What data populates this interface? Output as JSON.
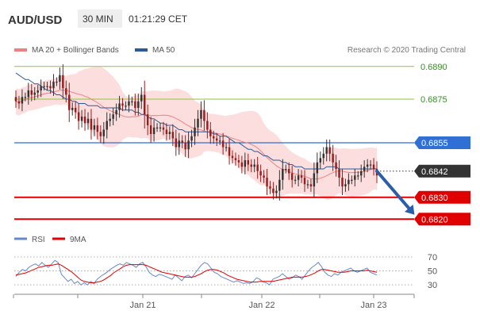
{
  "header": {
    "symbol": "AUD/USD",
    "interval": "30 MIN",
    "time": "01:21:29 CET"
  },
  "legend": {
    "bollinger_label": "MA 20 + Bollinger Bands",
    "ma50_label": "MA 50",
    "rsi_label": "RSI",
    "ma9_label": "9MA",
    "credit": "Research © 2020 Trading Central"
  },
  "colors": {
    "bollinger": "#f08080",
    "band_fill": "#fcd8d8",
    "ma50": "#2c5a96",
    "resistance": "#8cc63f",
    "pivot": "#2f6fd6",
    "support": "#e00000",
    "current": "#333333",
    "candle_up": "#333333",
    "candle_down": "#9b1c1c",
    "rsi": "#6688cc",
    "ma9": "#e00000",
    "arrow": "#2a5daa"
  },
  "chart_data": {
    "type": "candlestick",
    "price_axis": {
      "min": 0.6815,
      "max": 0.6895
    },
    "x_ticks": [
      "Jan 21",
      "Jan 22",
      "Jan 23"
    ],
    "levels": [
      {
        "label": "0.6890",
        "value": 0.689,
        "kind": "resistance"
      },
      {
        "label": "0.6875",
        "value": 0.6875,
        "kind": "resistance"
      },
      {
        "label": "0.6855",
        "value": 0.6855,
        "kind": "pivot"
      },
      {
        "label": "0.6842",
        "value": 0.6842,
        "kind": "current"
      },
      {
        "label": "0.6830",
        "value": 0.683,
        "kind": "support"
      },
      {
        "label": "0.6820",
        "value": 0.682,
        "kind": "support"
      }
    ],
    "forecast_arrow": {
      "from": 0.6842,
      "to": 0.6822,
      "bars_ahead": 12
    },
    "closes": [
      0.6874,
      0.6873,
      0.6876,
      0.6876,
      0.6879,
      0.6877,
      0.6878,
      0.6879,
      0.6881,
      0.6881,
      0.6881,
      0.688,
      0.6883,
      0.6883,
      0.6886,
      0.688,
      0.6877,
      0.687,
      0.6871,
      0.6869,
      0.6865,
      0.6867,
      0.6864,
      0.6866,
      0.6861,
      0.6863,
      0.686,
      0.6858,
      0.6861,
      0.6865,
      0.6866,
      0.6868,
      0.687,
      0.6873,
      0.6872,
      0.6872,
      0.6874,
      0.6874,
      0.6871,
      0.6874,
      0.6877,
      0.6868,
      0.6863,
      0.6859,
      0.6862,
      0.6862,
      0.6862,
      0.6861,
      0.6859,
      0.686,
      0.6857,
      0.6853,
      0.6856,
      0.6855,
      0.6852,
      0.6856,
      0.6858,
      0.6862,
      0.6866,
      0.687,
      0.6865,
      0.6861,
      0.6858,
      0.6857,
      0.6856,
      0.6856,
      0.6853,
      0.6853,
      0.6849,
      0.6848,
      0.6847,
      0.6846,
      0.6844,
      0.6847,
      0.6845,
      0.6844,
      0.6845,
      0.6842,
      0.684,
      0.6839,
      0.6835,
      0.6834,
      0.6832,
      0.6833,
      0.6838,
      0.6843,
      0.6843,
      0.6841,
      0.6838,
      0.6838,
      0.684,
      0.6839,
      0.6836,
      0.6836,
      0.6835,
      0.6841,
      0.6846,
      0.6848,
      0.685,
      0.6853,
      0.685,
      0.6846,
      0.6843,
      0.6839,
      0.6835,
      0.6836,
      0.6838,
      0.6838,
      0.684,
      0.684,
      0.6842,
      0.6844,
      0.6845,
      0.6845,
      0.6843,
      0.684
    ],
    "ma50": [
      0.6887,
      0.6886,
      0.6885,
      0.6884,
      0.6884,
      0.6883,
      0.6882,
      0.6882,
      0.6881,
      0.688,
      0.6879,
      0.6879,
      0.6878,
      0.6877,
      0.6877,
      0.6876,
      0.6875,
      0.6875,
      0.6874,
      0.6874,
      0.6873,
      0.6873,
      0.6873,
      0.6872,
      0.6872,
      0.6872,
      0.6872,
      0.6871,
      0.6871,
      0.6871,
      0.6871,
      0.6871,
      0.6871,
      0.6871,
      0.687,
      0.687,
      0.687,
      0.687,
      0.6869,
      0.6869,
      0.6868,
      0.6868,
      0.6867,
      0.6866,
      0.6866,
      0.6865,
      0.6864,
      0.6864,
      0.6863,
      0.6863,
      0.6863,
      0.6862,
      0.6861,
      0.6861,
      0.686,
      0.686,
      0.686,
      0.686,
      0.686,
      0.686,
      0.686,
      0.686,
      0.686,
      0.6859,
      0.6859,
      0.6858,
      0.6858,
      0.6858,
      0.6857,
      0.6856,
      0.6855,
      0.6855,
      0.6854,
      0.6853,
      0.6852,
      0.6852,
      0.6851,
      0.6851,
      0.685,
      0.6849,
      0.6849,
      0.6848,
      0.6847,
      0.6847,
      0.6847,
      0.6846,
      0.6846,
      0.6845,
      0.6845,
      0.6844,
      0.6844,
      0.6844,
      0.6843,
      0.6843,
      0.6843,
      0.6843,
      0.6843,
      0.6843,
      0.6843,
      0.6844,
      0.6844,
      0.6844,
      0.6844,
      0.6843,
      0.6843,
      0.6843,
      0.6843,
      0.6843,
      0.6843,
      0.6843,
      0.6843,
      0.6843,
      0.6843,
      0.6843,
      0.6843,
      0.6843
    ],
    "rsi": {
      "ticks": [
        70,
        50,
        30
      ],
      "range": [
        20,
        80
      ],
      "rsi": [
        42,
        48,
        52,
        50,
        55,
        58,
        60,
        57,
        62,
        58,
        55,
        60,
        65,
        62,
        45,
        40,
        35,
        38,
        32,
        35,
        30,
        33,
        30,
        35,
        32,
        38,
        42,
        45,
        48,
        52,
        55,
        58,
        60,
        58,
        62,
        60,
        58,
        55,
        60,
        62,
        56,
        48,
        44,
        42,
        45,
        44,
        42,
        40,
        38,
        44,
        40,
        36,
        42,
        44,
        40,
        46,
        52,
        58,
        62,
        60,
        54,
        48,
        46,
        42,
        40,
        38,
        36,
        34,
        36,
        34,
        32,
        33,
        32,
        35,
        40,
        38,
        34,
        33,
        30,
        38,
        40,
        42,
        46,
        42,
        38,
        40,
        44,
        42,
        38,
        44,
        50,
        55,
        58,
        62,
        56,
        48,
        44,
        42,
        46,
        44,
        48,
        50,
        52,
        54,
        50,
        48,
        50,
        52,
        54,
        48,
        46,
        44
      ],
      "ma9": [
        44,
        45,
        46,
        47,
        49,
        51,
        53,
        55,
        56,
        57,
        58,
        58,
        59,
        60,
        58,
        55,
        52,
        49,
        45,
        41,
        37,
        35,
        34,
        33,
        33,
        34,
        35,
        37,
        40,
        43,
        47,
        50,
        53,
        56,
        58,
        59,
        59,
        59,
        59,
        59,
        58,
        56,
        54,
        52,
        50,
        48,
        47,
        46,
        45,
        44,
        43,
        42,
        41,
        41,
        41,
        42,
        44,
        46,
        49,
        51,
        52,
        52,
        51,
        49,
        47,
        44,
        42,
        40,
        38,
        37,
        36,
        35,
        34,
        34,
        34,
        35,
        35,
        35,
        35,
        35,
        36,
        37,
        38,
        39,
        40,
        41,
        41,
        41,
        41,
        42,
        43,
        45,
        47,
        50,
        52,
        52,
        51,
        50,
        49,
        48,
        48,
        48,
        49,
        50,
        50,
        50,
        50,
        50,
        51,
        50,
        49,
        48
      ]
    }
  }
}
